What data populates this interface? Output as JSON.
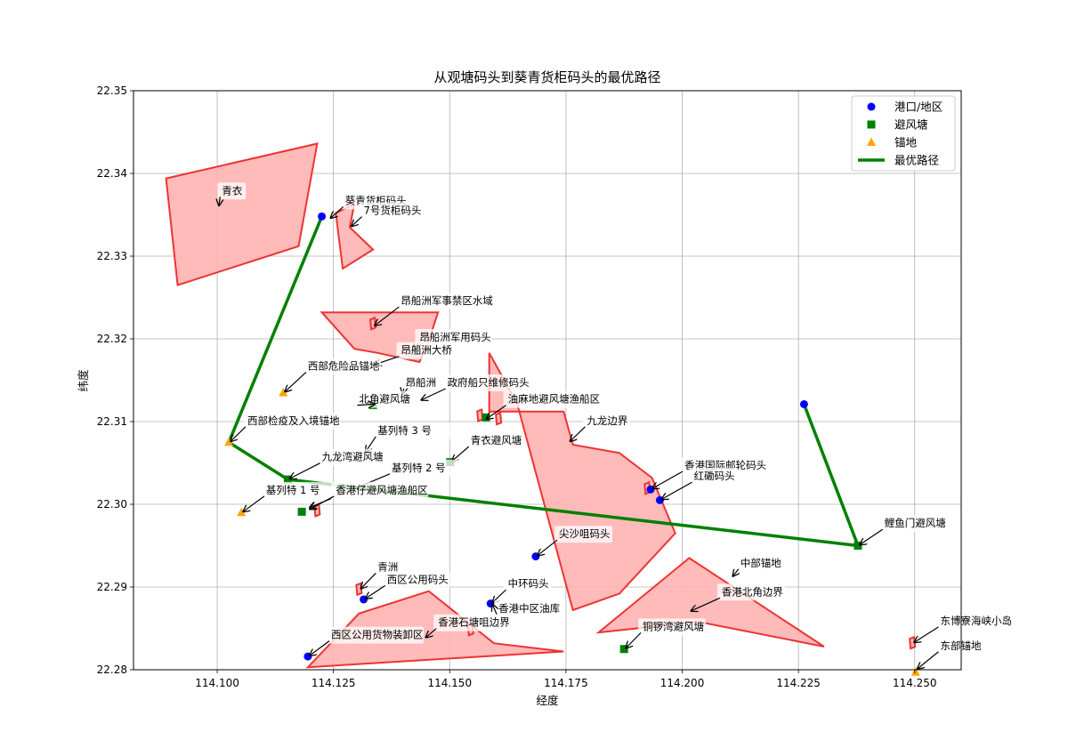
{
  "chart_data": {
    "type": "scatter",
    "title": "从观塘码头到葵青货柜码头的最优路径",
    "xlabel": "经度",
    "ylabel": "纬度",
    "xlim": [
      114.082,
      114.26
    ],
    "ylim": [
      22.28,
      22.35
    ],
    "xticks": [
      "114.100",
      "114.125",
      "114.150",
      "114.175",
      "114.200",
      "114.225",
      "114.250"
    ],
    "yticks": [
      "22.28",
      "22.29",
      "22.30",
      "22.31",
      "22.32",
      "22.33",
      "22.34",
      "22.35"
    ],
    "grid": true,
    "legend_position": "top-right",
    "legend": [
      {
        "label": "港口/地区",
        "marker": "circle",
        "color": "#0000ff"
      },
      {
        "label": "避风塘",
        "marker": "square",
        "color": "#008000"
      },
      {
        "label": "锚地",
        "marker": "triangle",
        "color": "#ffa500"
      },
      {
        "label": "最优路径",
        "marker": "line",
        "color": "#008000"
      }
    ],
    "colors": {
      "port": "#0000ff",
      "shelter": "#008000",
      "anchorage": "#ffa500",
      "path": "#008000",
      "zone_fill": "#ffb3b3",
      "zone_edge": "#ee3333"
    },
    "zones": [
      {
        "name": "青衣",
        "points": [
          [
            114.089,
            22.3394
          ],
          [
            114.1215,
            22.3436
          ],
          [
            114.1175,
            22.3312
          ],
          [
            114.0915,
            22.3265
          ]
        ]
      },
      {
        "name": "葵青货柜码头区",
        "points": [
          [
            114.1255,
            22.3352
          ],
          [
            114.1295,
            22.3363
          ],
          [
            114.1285,
            22.3335
          ],
          [
            114.1335,
            22.3308
          ],
          [
            114.127,
            22.3285
          ]
        ]
      },
      {
        "name": "昂船洲",
        "points": [
          [
            114.1225,
            22.3232
          ],
          [
            114.1475,
            22.3232
          ],
          [
            114.1455,
            22.3198
          ],
          [
            114.1435,
            22.3172
          ],
          [
            114.1345,
            22.3183
          ],
          [
            114.1295,
            22.3188
          ]
        ]
      },
      {
        "name": "九龙边界",
        "points": [
          [
            114.1585,
            22.3183
          ],
          [
            114.1585,
            22.3112
          ],
          [
            114.1745,
            22.3112
          ],
          [
            114.1765,
            22.3072
          ],
          [
            114.1865,
            22.3062
          ],
          [
            114.1935,
            22.3032
          ],
          [
            114.1985,
            22.2965
          ],
          [
            114.1865,
            22.2892
          ],
          [
            114.1765,
            22.2872
          ],
          [
            114.1645,
            22.3122
          ]
        ]
      },
      {
        "name": "香港北角边界",
        "points": [
          [
            114.182,
            22.2845
          ],
          [
            114.2015,
            22.2935
          ],
          [
            114.2305,
            22.2828
          ],
          [
            114.2035,
            22.2858
          ]
        ]
      },
      {
        "name": "西区公用货物装卸区",
        "points": [
          [
            114.1195,
            22.2803
          ],
          [
            114.1305,
            22.2868
          ],
          [
            114.1455,
            22.2895
          ],
          [
            114.1595,
            22.2832
          ],
          [
            114.1655,
            22.2828
          ],
          [
            114.1745,
            22.2822
          ]
        ]
      }
    ],
    "small_zones": [
      {
        "x": 114.1335,
        "y": 22.3218
      },
      {
        "x": 114.1565,
        "y": 22.3107
      },
      {
        "x": 114.1605,
        "y": 22.3103
      },
      {
        "x": 114.1215,
        "y": 22.2992
      },
      {
        "x": 114.1305,
        "y": 22.2897
      },
      {
        "x": 114.1925,
        "y": 22.3019
      },
      {
        "x": 114.1545,
        "y": 22.2848
      },
      {
        "x": 114.2495,
        "y": 22.2832
      }
    ],
    "ports": [
      {
        "name": "葵青货柜码头",
        "x": 114.1225,
        "y": 22.3348
      },
      {
        "name": "观塘码头",
        "x": 114.2262,
        "y": 22.3121
      },
      {
        "name": "红磡码头",
        "x": 114.1952,
        "y": 22.3005
      },
      {
        "name": "尖沙咀码头",
        "x": 114.1685,
        "y": 22.2937
      },
      {
        "name": "西区公用码头",
        "x": 114.1315,
        "y": 22.2885
      },
      {
        "name": "中环码头",
        "x": 114.1588,
        "y": 22.288
      },
      {
        "name": "西区公用货物装卸区",
        "x": 114.1195,
        "y": 22.2816
      },
      {
        "name": "香港国际邮轮码头",
        "x": 114.1932,
        "y": 22.3018
      }
    ],
    "shelters": [
      {
        "name": "九龙湾避风塘",
        "x": 114.1152,
        "y": 22.303
      },
      {
        "name": "香港仔避风塘渔船区",
        "x": 114.1182,
        "y": 22.2991
      },
      {
        "name": "青衣避风塘",
        "x": 114.1501,
        "y": 22.3051
      },
      {
        "name": "政府船只维修码头",
        "x": 114.1578,
        "y": 22.3105
      },
      {
        "name": "鲤鱼门避风塘",
        "x": 114.2378,
        "y": 22.295
      },
      {
        "name": "铜锣湾避风塘",
        "x": 114.1875,
        "y": 22.2825
      },
      {
        "name": "北角避风塘",
        "x": 114.1335,
        "y": 22.312
      }
    ],
    "anchorages": [
      {
        "name": "西部检疫及入境锚地",
        "x": 114.1025,
        "y": 22.3075
      },
      {
        "name": "西部危险品锚地",
        "x": 114.1142,
        "y": 22.3135
      },
      {
        "name": "基列特 1 号",
        "x": 114.1052,
        "y": 22.299
      },
      {
        "name": "东部锚地",
        "x": 114.2502,
        "y": 22.2797
      }
    ],
    "optimal_path": [
      {
        "x": 114.2262,
        "y": 22.3121
      },
      {
        "x": 114.2378,
        "y": 22.295
      },
      {
        "x": 114.1152,
        "y": 22.303
      },
      {
        "x": 114.1025,
        "y": 22.3075
      },
      {
        "x": 114.1225,
        "y": 22.3348
      }
    ],
    "annotations": [
      {
        "text": "青衣",
        "tx": 114.101,
        "ty": 22.3375,
        "x": 114.1,
        "y": 22.336
      },
      {
        "text": "葵青货柜码头",
        "tx": 114.1275,
        "ty": 22.3363,
        "x": 114.124,
        "y": 22.3345
      },
      {
        "text": "7号货柜码头",
        "tx": 114.1315,
        "ty": 22.3351,
        "x": 114.1285,
        "y": 22.3335
      },
      {
        "text": "昂船洲军事禁区水域",
        "tx": 114.1395,
        "ty": 22.3242,
        "x": 114.1335,
        "y": 22.3215
      },
      {
        "text": "昂船洲军用码头",
        "tx": 114.1435,
        "ty": 22.3198,
        "x": 114.1425,
        "y": 22.3185
      },
      {
        "text": "昂船洲大桥",
        "tx": 114.1395,
        "ty": 22.3182,
        "x": 114.1335,
        "y": 22.3168
      },
      {
        "text": "西部危险品锚地",
        "tx": 114.1195,
        "ty": 22.3163,
        "x": 114.1142,
        "y": 22.3135
      },
      {
        "text": "昂船洲",
        "tx": 114.1405,
        "ty": 22.3143,
        "x": 114.1395,
        "y": 22.3132
      },
      {
        "text": "政府船只维修码头",
        "tx": 114.1495,
        "ty": 22.3143,
        "x": 114.1435,
        "y": 22.3125
      },
      {
        "text": "北角避风塘",
        "tx": 114.1305,
        "ty": 22.3123,
        "x": 114.1335,
        "y": 22.312
      },
      {
        "text": "油麻地避风塘渔船区",
        "tx": 114.1625,
        "ty": 22.3123,
        "x": 114.1575,
        "y": 22.3102
      },
      {
        "text": "西部检疫及入境锚地",
        "tx": 114.1065,
        "ty": 22.3097,
        "x": 114.1025,
        "y": 22.3075
      },
      {
        "text": "九龙边界",
        "tx": 114.1795,
        "ty": 22.3097,
        "x": 114.1755,
        "y": 22.3075
      },
      {
        "text": "基列特 3 号",
        "tx": 114.1345,
        "ty": 22.3085,
        "x": 114.1315,
        "y": 22.3062
      },
      {
        "text": "青衣避风塘",
        "tx": 114.1545,
        "ty": 22.3073,
        "x": 114.1501,
        "y": 22.3051
      },
      {
        "text": "九龙湾避风塘",
        "tx": 114.1225,
        "ty": 22.3053,
        "x": 114.1152,
        "y": 22.303
      },
      {
        "text": "基列特 2 号",
        "tx": 114.1375,
        "ty": 22.304,
        "x": 114.1195,
        "y": 22.2995
      },
      {
        "text": "香港国际邮轮码头",
        "tx": 114.2005,
        "ty": 22.3043,
        "x": 114.1932,
        "y": 22.3018
      },
      {
        "text": "红磡码头",
        "tx": 114.2025,
        "ty": 22.303,
        "x": 114.1952,
        "y": 22.3005
      },
      {
        "text": "基列特 1 号",
        "tx": 114.1105,
        "ty": 22.3013,
        "x": 114.1052,
        "y": 22.299
      },
      {
        "text": "香港仔避风塘渔船区",
        "tx": 114.1255,
        "ty": 22.3013,
        "x": 114.1195,
        "y": 22.2993
      },
      {
        "text": "鲤鱼门避风塘",
        "tx": 114.2435,
        "ty": 22.2973,
        "x": 114.2378,
        "y": 22.295
      },
      {
        "text": "尖沙咀码头",
        "tx": 114.1735,
        "ty": 22.296,
        "x": 114.1685,
        "y": 22.2937
      },
      {
        "text": "中部锚地",
        "tx": 114.2125,
        "ty": 22.2925,
        "x": 114.2105,
        "y": 22.2912
      },
      {
        "text": "青洲",
        "tx": 114.1345,
        "ty": 22.292,
        "x": 114.1305,
        "y": 22.2897
      },
      {
        "text": "西区公用码头",
        "tx": 114.1365,
        "ty": 22.2905,
        "x": 114.1315,
        "y": 22.2885
      },
      {
        "text": "中环码头",
        "tx": 114.1625,
        "ty": 22.29,
        "x": 114.1588,
        "y": 22.288
      },
      {
        "text": "香港北角边界",
        "tx": 114.2085,
        "ty": 22.289,
        "x": 114.2015,
        "y": 22.287
      },
      {
        "text": "香港中区油库",
        "tx": 114.1605,
        "ty": 22.287,
        "x": 114.1588,
        "y": 22.2878
      },
      {
        "text": "香港石塘咀边界",
        "tx": 114.1475,
        "ty": 22.2853,
        "x": 114.1445,
        "y": 22.2838
      },
      {
        "text": "铜锣湾避风塘",
        "tx": 114.1915,
        "ty": 22.2848,
        "x": 114.1875,
        "y": 22.2825
      },
      {
        "text": "西区公用货物装卸区",
        "tx": 114.1245,
        "ty": 22.2838,
        "x": 114.1195,
        "y": 22.2816
      },
      {
        "text": "东博寮海峡小岛",
        "tx": 114.2555,
        "ty": 22.2855,
        "x": 114.2495,
        "y": 22.2832
      },
      {
        "text": "东部锚地",
        "tx": 114.2555,
        "ty": 22.2825,
        "x": 114.2502,
        "y": 22.28
      }
    ]
  }
}
